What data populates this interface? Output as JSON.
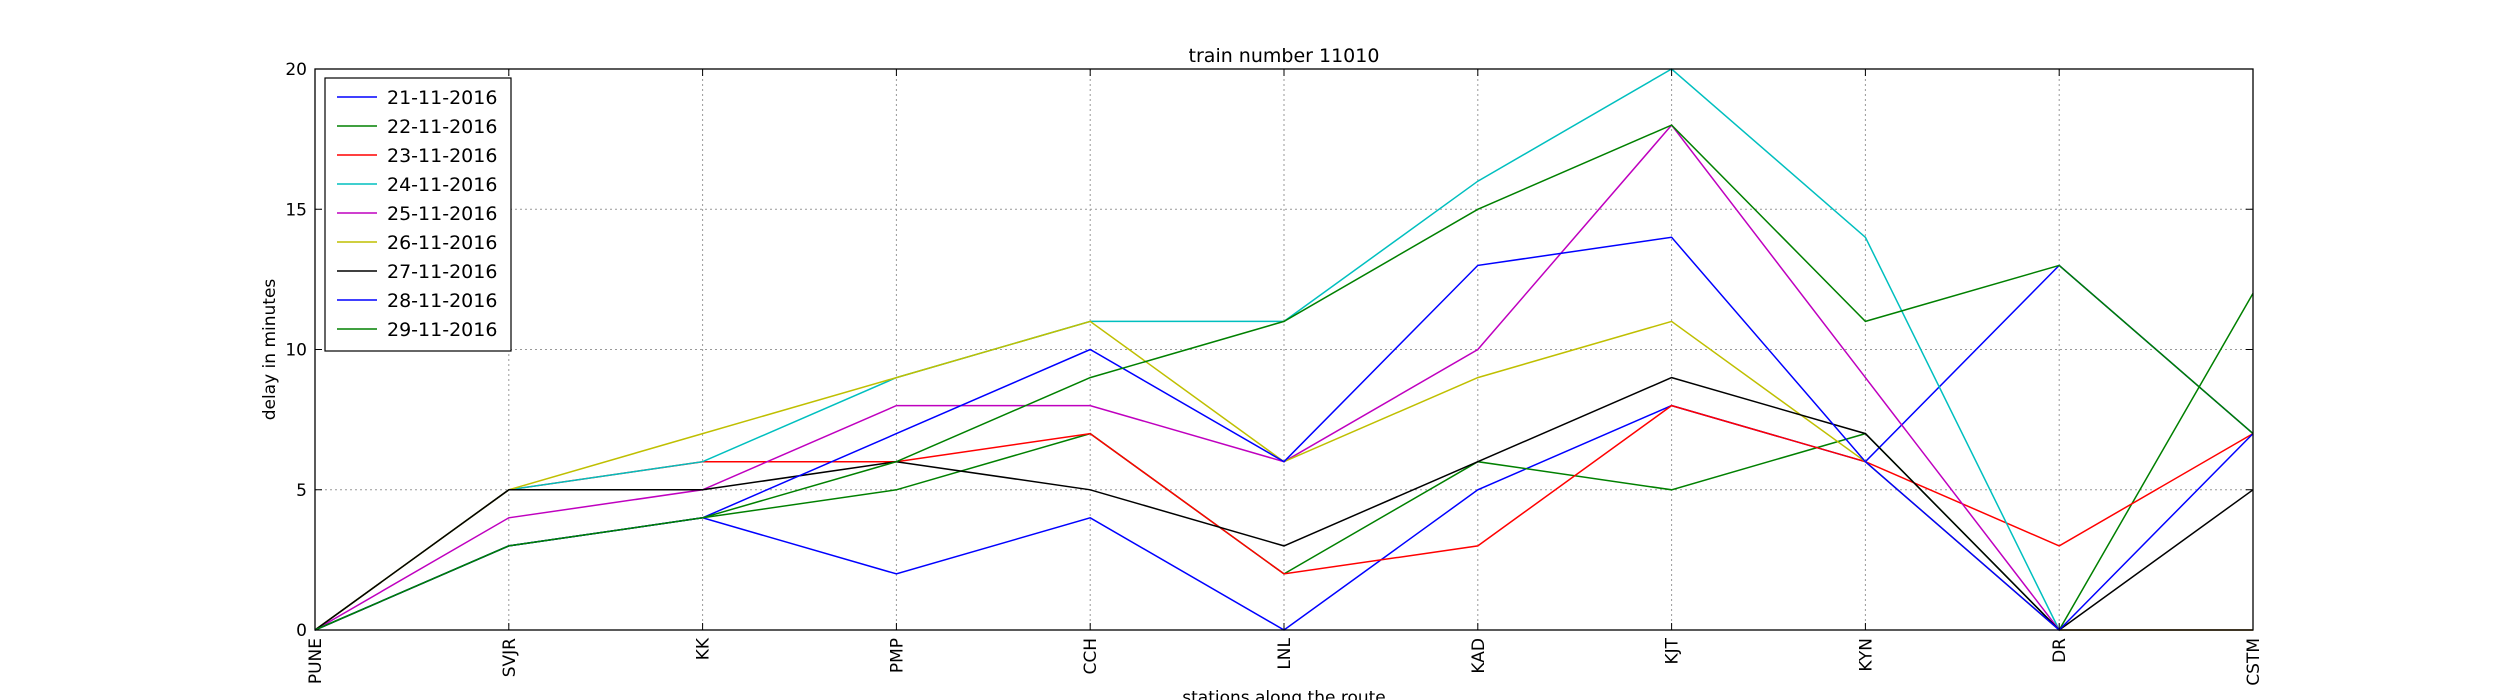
{
  "chart_data": {
    "type": "line",
    "title": "train number 11010",
    "xlabel": "stations along the route",
    "ylabel": "delay in minutes",
    "categories": [
      "PUNE",
      "SVJR",
      "KK",
      "PMP",
      "CCH",
      "LNL",
      "KAD",
      "KJT",
      "KYN",
      "DR",
      "CSTM"
    ],
    "ylim": [
      0,
      20
    ],
    "yticks": [
      0,
      5,
      10,
      15,
      20
    ],
    "grid": true,
    "legend_position": "top-left",
    "series": [
      {
        "name": "21-11-2016",
        "color": "#0000ff",
        "values": [
          0,
          3,
          4,
          2,
          4,
          0,
          5,
          8,
          6,
          13,
          7
        ]
      },
      {
        "name": "22-11-2016",
        "color": "#008000",
        "values": [
          0,
          3,
          4,
          5,
          7,
          2,
          6,
          5,
          7,
          0,
          12
        ]
      },
      {
        "name": "23-11-2016",
        "color": "#ff0000",
        "values": [
          0,
          5,
          6,
          6,
          7,
          2,
          3,
          8,
          6,
          3,
          7
        ]
      },
      {
        "name": "24-11-2016",
        "color": "#00bfbf",
        "values": [
          0,
          5,
          6,
          9,
          11,
          11,
          16,
          20,
          14,
          0,
          0
        ]
      },
      {
        "name": "25-11-2016",
        "color": "#bf00bf",
        "values": [
          0,
          4,
          5,
          8,
          8,
          6,
          10,
          18,
          9,
          0,
          0
        ]
      },
      {
        "name": "26-11-2016",
        "color": "#bfbf00",
        "values": [
          0,
          5,
          7,
          9,
          11,
          6,
          9,
          11,
          6,
          0,
          0
        ]
      },
      {
        "name": "27-11-2016",
        "color": "#000000",
        "values": [
          0,
          5,
          5,
          6,
          5,
          3,
          6,
          9,
          7,
          0,
          5
        ]
      },
      {
        "name": "28-11-2016",
        "color": "#0000ff",
        "values": [
          0,
          3,
          4,
          7,
          10,
          6,
          13,
          14,
          6,
          0,
          7
        ]
      },
      {
        "name": "29-11-2016",
        "color": "#008000",
        "values": [
          0,
          3,
          4,
          6,
          9,
          11,
          15,
          18,
          11,
          13,
          7
        ]
      }
    ]
  }
}
